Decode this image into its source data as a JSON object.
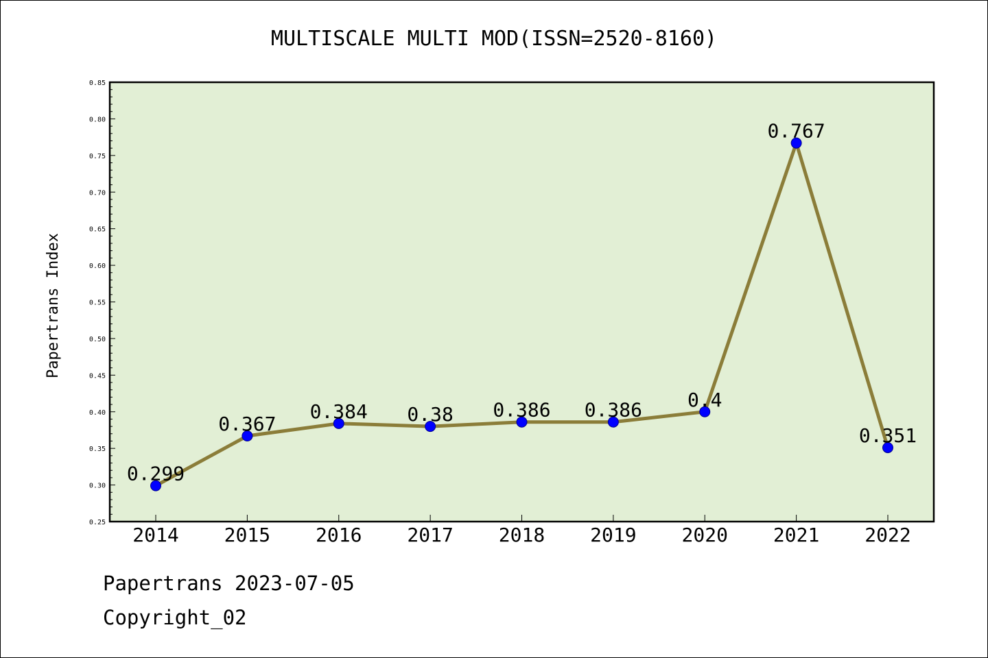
{
  "chart_data": {
    "type": "line",
    "title": "MULTISCALE MULTI MOD(ISSN=2520-8160)",
    "ylabel": "Papertrans Index",
    "xlabel": "",
    "categories": [
      "2014",
      "2015",
      "2016",
      "2017",
      "2018",
      "2019",
      "2020",
      "2021",
      "2022"
    ],
    "series": [
      {
        "values": [
          0.299,
          0.367,
          0.384,
          0.38,
          0.386,
          0.386,
          0.4,
          0.767,
          0.351
        ],
        "labels": [
          "0.299",
          "0.367",
          "0.384",
          "0.38",
          "0.386",
          "0.386",
          "0.4",
          "0.767",
          "0.351"
        ]
      }
    ],
    "ylim": [
      0.25,
      0.85
    ],
    "yticks": [
      "0.25",
      "0.30",
      "0.35",
      "0.40",
      "0.45",
      "0.50",
      "0.55",
      "0.60",
      "0.65",
      "0.70",
      "0.75",
      "0.80",
      "0.85"
    ],
    "grid": false,
    "colors": {
      "plot_bg": "#e2efd5",
      "line": "#8b7d39",
      "marker": "#0000ff"
    }
  },
  "footer": {
    "date_line": "Papertrans 2023-07-05",
    "copyright": "Copyright_02"
  }
}
